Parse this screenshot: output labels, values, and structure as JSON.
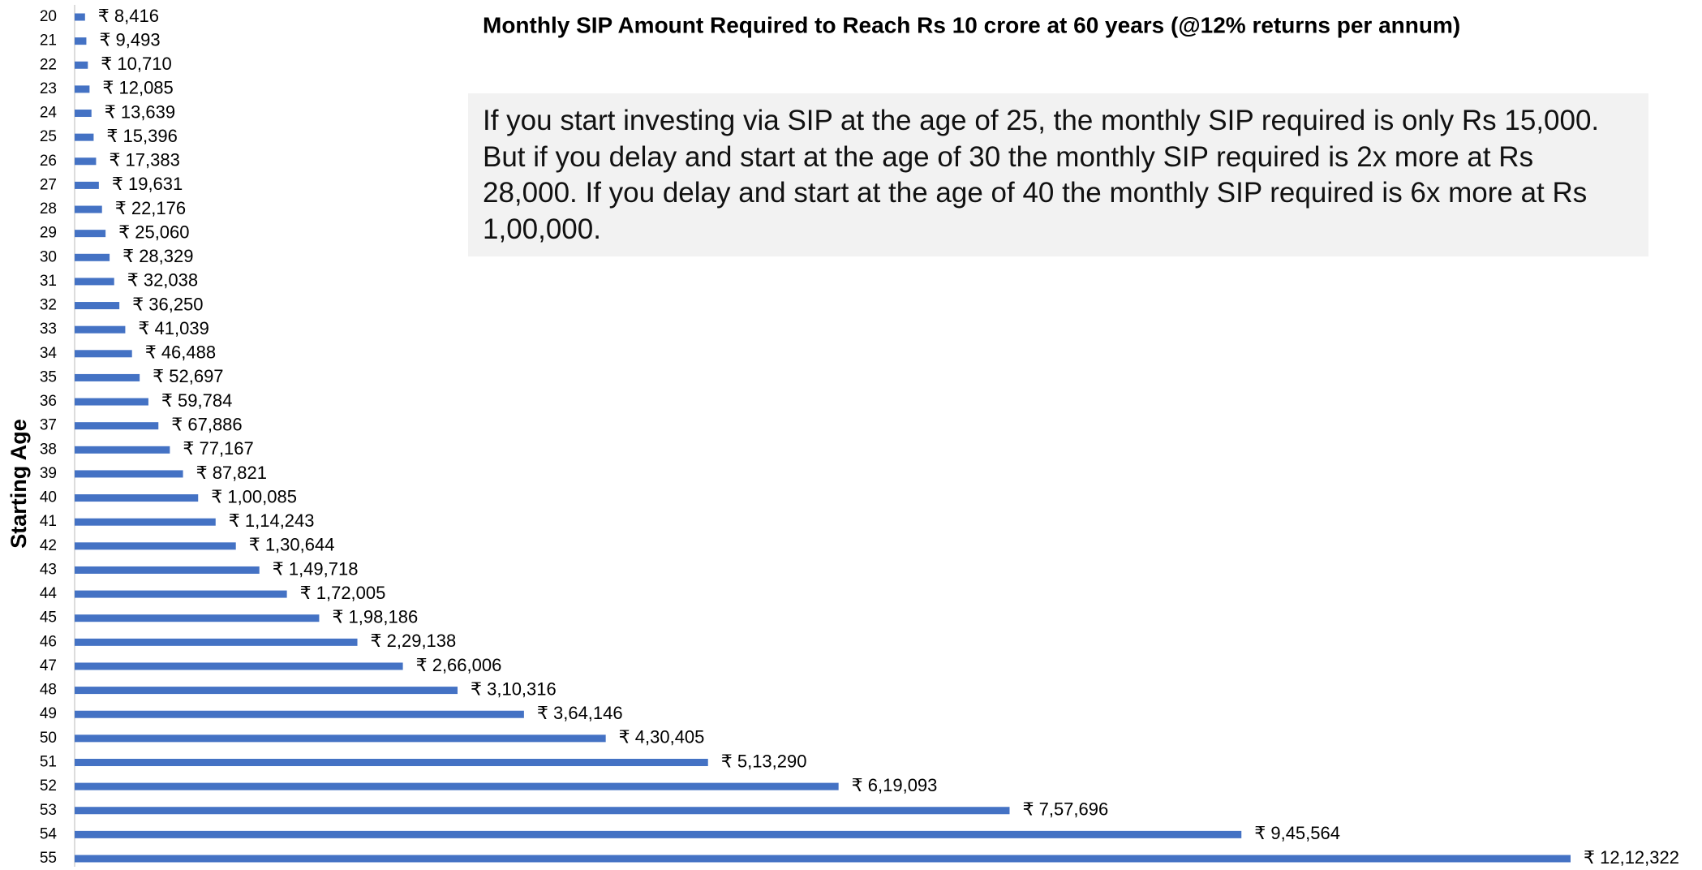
{
  "chart_data": {
    "type": "bar",
    "orientation": "horizontal",
    "title": "Monthly SIP Amount Required to Reach Rs 10 crore at 60 years (@12% returns per annum)",
    "annotation": "If you start investing via SIP at the age of 25, the monthly SIP required is only Rs 15,000. But if you delay and start at the age of 30 the monthly SIP required is 2x more at Rs 28,000. If you delay and start at the age of 40 the monthly SIP required is 6x more at Rs 1,00,000.",
    "y_label": "Starting Age",
    "color": "#4472c4",
    "categories": [
      "20",
      "21",
      "22",
      "23",
      "24",
      "25",
      "26",
      "27",
      "28",
      "29",
      "30",
      "31",
      "32",
      "33",
      "34",
      "35",
      "36",
      "37",
      "38",
      "39",
      "40",
      "41",
      "42",
      "43",
      "44",
      "45",
      "46",
      "47",
      "48",
      "49",
      "50",
      "51",
      "52",
      "53",
      "54",
      "55"
    ],
    "values": [
      8416,
      9493,
      10710,
      12085,
      13639,
      15396,
      17383,
      19631,
      22176,
      25060,
      28329,
      32038,
      36250,
      41039,
      46488,
      52697,
      59784,
      67886,
      77167,
      87821,
      100085,
      114243,
      130644,
      149718,
      172005,
      198186,
      229138,
      266006,
      310316,
      364146,
      430405,
      513290,
      619093,
      757696,
      945564,
      1212322
    ],
    "value_labels": [
      "₹ 8,416",
      "₹ 9,493",
      "₹ 10,710",
      "₹ 12,085",
      "₹ 13,639",
      "₹ 15,396",
      "₹ 17,383",
      "₹ 19,631",
      "₹ 22,176",
      "₹ 25,060",
      "₹ 28,329",
      "₹ 32,038",
      "₹ 36,250",
      "₹ 41,039",
      "₹ 46,488",
      "₹ 52,697",
      "₹ 59,784",
      "₹ 67,886",
      "₹ 77,167",
      "₹ 87,821",
      "₹ 1,00,085",
      "₹ 1,14,243",
      "₹ 1,30,644",
      "₹ 1,49,718",
      "₹ 1,72,005",
      "₹ 1,98,186",
      "₹ 2,29,138",
      "₹ 2,66,006",
      "₹ 3,10,316",
      "₹ 3,64,146",
      "₹ 4,30,405",
      "₹ 5,13,290",
      "₹ 6,19,093",
      "₹ 7,57,696",
      "₹ 9,45,564",
      "₹ 12,12,322"
    ]
  }
}
